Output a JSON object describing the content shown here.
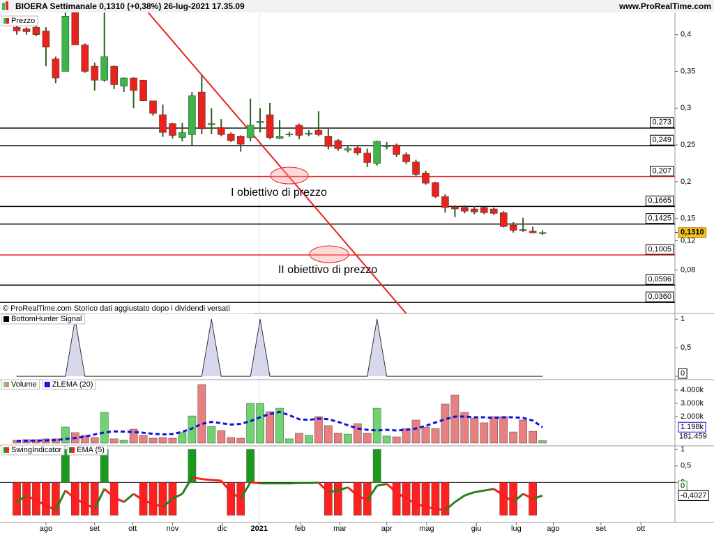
{
  "header": {
    "title": "BIOERA Settimanale 0,1310 (+0,38%) 26-lug-2021 17.35.09",
    "site": "www.ProRealTime.com",
    "footer": "© ProRealTime.com Storico dati aggiustato dopo i dividendi versati"
  },
  "chart_data": [
    {
      "type": "candlestick",
      "legend": "Prezzo",
      "x": [
        0,
        1,
        2,
        3,
        4,
        5,
        6,
        7,
        8,
        9,
        10,
        11,
        12,
        13,
        14,
        15,
        16,
        17,
        18,
        19,
        20,
        21,
        22,
        23,
        24,
        25,
        26,
        27,
        28,
        29,
        30,
        31,
        32,
        33,
        34,
        35,
        36,
        37,
        38,
        39,
        40,
        41,
        42,
        43,
        44,
        45,
        46,
        47,
        48,
        49,
        50,
        51,
        52,
        53,
        54
      ],
      "open": [
        0.41,
        0.408,
        0.41,
        0.405,
        0.367,
        0.35,
        0.43,
        0.386,
        0.357,
        0.338,
        0.357,
        0.33,
        0.341,
        0.338,
        0.31,
        0.291,
        0.279,
        0.26,
        0.264,
        0.322,
        0.278,
        0.274,
        0.265,
        0.262,
        0.26,
        0.281,
        0.291,
        0.259,
        0.264,
        0.277,
        0.266,
        0.27,
        0.262,
        0.256,
        0.243,
        0.246,
        0.239,
        0.225,
        0.248,
        0.25,
        0.237,
        0.227,
        0.212,
        0.199,
        0.18,
        0.166,
        0.165,
        0.163,
        0.165,
        0.163,
        0.158,
        0.141,
        0.135,
        0.133,
        0.1305
      ],
      "high": [
        0.415,
        0.41,
        0.412,
        0.41,
        0.37,
        0.43,
        0.43,
        0.388,
        0.362,
        0.43,
        0.358,
        0.342,
        0.342,
        0.338,
        0.31,
        0.305,
        0.28,
        0.28,
        0.322,
        0.345,
        0.3,
        0.285,
        0.267,
        0.263,
        0.313,
        0.3,
        0.307,
        0.284,
        0.268,
        0.279,
        0.27,
        0.296,
        0.272,
        0.258,
        0.25,
        0.25,
        0.245,
        0.256,
        0.254,
        0.252,
        0.24,
        0.23,
        0.215,
        0.2,
        0.183,
        0.168,
        0.168,
        0.167,
        0.166,
        0.165,
        0.16,
        0.145,
        0.151,
        0.139,
        0.134
      ],
      "low": [
        0.4,
        0.4,
        0.398,
        0.357,
        0.334,
        0.35,
        0.386,
        0.348,
        0.324,
        0.336,
        0.326,
        0.322,
        0.3,
        0.31,
        0.29,
        0.261,
        0.259,
        0.255,
        0.25,
        0.265,
        0.265,
        0.262,
        0.254,
        0.241,
        0.255,
        0.267,
        0.258,
        0.258,
        0.261,
        0.258,
        0.262,
        0.262,
        0.244,
        0.242,
        0.24,
        0.236,
        0.22,
        0.222,
        0.244,
        0.234,
        0.224,
        0.208,
        0.196,
        0.178,
        0.158,
        0.152,
        0.157,
        0.156,
        0.156,
        0.155,
        0.138,
        0.131,
        0.132,
        0.13,
        0.128
      ],
      "close": [
        0.405,
        0.404,
        0.4,
        0.383,
        0.341,
        0.425,
        0.386,
        0.35,
        0.338,
        0.37,
        0.332,
        0.341,
        0.324,
        0.31,
        0.293,
        0.267,
        0.263,
        0.267,
        0.317,
        0.272,
        0.279,
        0.264,
        0.256,
        0.251,
        0.277,
        0.282,
        0.26,
        0.262,
        0.265,
        0.263,
        0.266,
        0.264,
        0.248,
        0.245,
        0.245,
        0.239,
        0.226,
        0.255,
        0.249,
        0.237,
        0.227,
        0.21,
        0.198,
        0.18,
        0.165,
        0.163,
        0.16,
        0.159,
        0.158,
        0.157,
        0.139,
        0.134,
        0.134,
        0.1305,
        0.131
      ],
      "up_color": "#3cb54a",
      "down_color": "#e8231e",
      "wick_color": "#2f5e1e",
      "xlim": [
        -1.72,
        67.6
      ],
      "xticks": [
        {
          "value": 3.0,
          "label": "ago"
        },
        {
          "value": 8.0,
          "label": "set"
        },
        {
          "value": 11.9,
          "label": "ott"
        },
        {
          "value": 16.0,
          "label": "nov"
        },
        {
          "value": 21.1,
          "label": "dic"
        },
        {
          "value": 24.9,
          "label": "2021"
        },
        {
          "value": 29.1,
          "label": "feb"
        },
        {
          "value": 33.2,
          "label": "mar"
        },
        {
          "value": 38.0,
          "label": "apr"
        },
        {
          "value": 42.1,
          "label": "mag"
        },
        {
          "value": 47.2,
          "label": "giu"
        },
        {
          "value": 51.3,
          "label": "lug"
        },
        {
          "value": 55.1,
          "label": "ago"
        },
        {
          "value": 60.0,
          "label": "set"
        },
        {
          "value": 64.1,
          "label": "ott"
        }
      ],
      "ylim": [
        0.021,
        0.43
      ],
      "yticks": [
        {
          "value": 0.4,
          "label": "0,4"
        },
        {
          "value": 0.35,
          "label": "0,35"
        },
        {
          "value": 0.3,
          "label": "0,3"
        },
        {
          "value": 0.25,
          "label": "0,25"
        },
        {
          "value": 0.2,
          "label": "0,2"
        },
        {
          "value": 0.15,
          "label": "0,15"
        },
        {
          "value": 0.12,
          "label": "0,12"
        },
        {
          "value": 0.08,
          "label": "0,08"
        }
      ],
      "levels": [
        {
          "value": 0.273,
          "label": "0,273",
          "color": "#000000"
        },
        {
          "value": 0.249,
          "label": "0,249",
          "color": "#000000"
        },
        {
          "value": 0.207,
          "label": "0,207",
          "color": "#e8231e"
        },
        {
          "value": 0.1665,
          "label": "0,1665",
          "color": "#000000"
        },
        {
          "value": 0.1425,
          "label": "0,1425",
          "color": "#000000"
        },
        {
          "value": 0.1005,
          "label": "0,1005",
          "color": "#e8231e"
        },
        {
          "value": 0.0596,
          "label": "0,0596",
          "color": "#000000"
        },
        {
          "value": 0.036,
          "label": "0,0360",
          "color": "#000000"
        }
      ],
      "trendline": {
        "x": [
          13.5,
          40.0
        ],
        "y": [
          0.43,
          0.021
        ],
        "color": "#e8231e"
      },
      "annotations": [
        "I obiettivo di prezzo",
        "II obiettivo di prezzo"
      ],
      "last_price": {
        "value": 0.131,
        "label": "0,1310"
      }
    },
    {
      "type": "area",
      "series": [
        {
          "name": "BottomHunter Signal",
          "color": "#d8d8ec",
          "values": [
            0,
            0,
            0,
            0,
            0,
            0,
            1,
            0,
            0,
            0,
            0,
            0,
            0,
            0,
            0,
            0,
            0,
            0,
            0,
            0,
            1,
            0,
            0,
            0,
            0,
            1,
            0,
            0,
            0,
            0,
            0,
            0,
            0,
            0,
            0,
            0,
            0,
            1,
            0,
            0,
            0,
            0,
            0,
            0,
            0,
            0,
            0,
            0,
            0,
            0,
            0,
            0,
            0,
            0,
            0
          ]
        }
      ],
      "ylim": [
        -0.06,
        1.1
      ],
      "yticks": [
        1,
        {
          "value": 0.5,
          "label": "0,5"
        },
        0
      ]
    },
    {
      "type": "bar",
      "series": [
        {
          "name": "Volume",
          "up_color": "#6fd46f",
          "down_color": "#e88080",
          "values": [
            210,
            260,
            260,
            320,
            320,
            1210,
            790,
            580,
            420,
            2320,
            320,
            210,
            1050,
            580,
            370,
            420,
            370,
            790,
            2050,
            4420,
            1260,
            950,
            420,
            370,
            3000,
            3000,
            2370,
            2630,
            320,
            740,
            580,
            2000,
            1320,
            740,
            680,
            1470,
            740,
            2630,
            530,
            470,
            1100,
            1740,
            1210,
            1100,
            2950,
            3630,
            2320,
            1890,
            1530,
            2000,
            2000,
            840,
            1740,
            890,
            181.459
          ]
        },
        {
          "name": "ZLEMA (20)",
          "color": "#1010e0",
          "values": [
            150,
            160,
            180,
            200,
            230,
            300,
            380,
            480,
            650,
            800,
            880,
            860,
            830,
            780,
            700,
            650,
            680,
            850,
            1100,
            1450,
            1600,
            1500,
            1400,
            1450,
            1650,
            1950,
            2200,
            2350,
            2100,
            1800,
            1750,
            1850,
            1800,
            1600,
            1350,
            1100,
            1000,
            950,
            1000,
            950,
            1000,
            1100,
            1300,
            1550,
            1800,
            2000,
            2000,
            1950,
            1950,
            1900,
            1950,
            1950,
            1900,
            1700,
            1198
          ],
          "last_label": "1.198k"
        }
      ],
      "ylim": [
        -210,
        4790
      ],
      "yticks": [
        {
          "value": 4000,
          "label": "4.000k"
        },
        {
          "value": 3000,
          "label": "3.000k"
        },
        {
          "value": 2000,
          "label": "2.000k"
        }
      ]
    },
    {
      "type": "bar",
      "series": [
        {
          "name": "SwingIndicator",
          "up_color": "#1a9a1a",
          "down_color": "#ff2020",
          "values": [
            -1,
            -1,
            -1,
            -1,
            -1,
            1,
            -1,
            -1,
            -1,
            1,
            -1,
            0,
            0,
            -1,
            -1,
            -1,
            -1,
            0,
            1,
            0,
            0,
            0,
            -1,
            -1,
            1,
            0,
            0,
            0,
            0,
            0,
            0,
            0,
            -1,
            -1,
            0,
            -1,
            -1,
            1,
            0,
            -1,
            -1,
            -1,
            -1,
            -1,
            -1,
            0,
            0,
            0,
            0,
            0,
            -1,
            -1,
            0,
            -1,
            0
          ]
        },
        {
          "name": "EMA (5)",
          "up_color": "#2e7d1a",
          "down_color": "#ff1a1a",
          "values": [
            -0.6,
            -0.4,
            -0.55,
            -0.7,
            -0.85,
            -0.25,
            -0.5,
            -0.65,
            -0.8,
            -0.2,
            -0.45,
            -0.6,
            -0.35,
            -0.55,
            -0.65,
            -0.75,
            -0.5,
            -0.35,
            0.15,
            0.1,
            0.07,
            0.05,
            -0.3,
            -0.5,
            0,
            -0.03,
            -0.03,
            -0.03,
            -0.03,
            -0.02,
            -0.02,
            -0.01,
            -0.3,
            -0.25,
            -0.15,
            -0.4,
            -0.55,
            -0.1,
            -0.05,
            -0.3,
            -0.5,
            -0.65,
            -0.75,
            -0.8,
            -0.85,
            -0.6,
            -0.4,
            -0.3,
            -0.25,
            -0.2,
            -0.4,
            -0.6,
            -0.35,
            -0.5,
            -0.4027
          ],
          "last_label": "-0,4027"
        }
      ],
      "ylim": [
        -1.22,
        1.11
      ],
      "yticks": [
        1,
        {
          "value": 0.5,
          "label": "0,5"
        },
        0
      ]
    }
  ]
}
